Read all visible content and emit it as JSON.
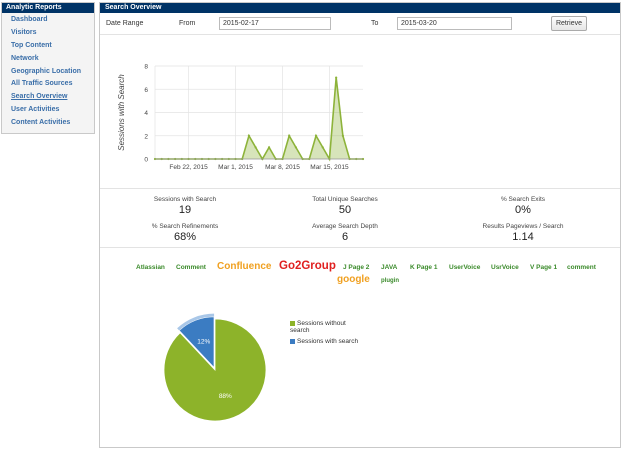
{
  "sidebar": {
    "title": "Analytic Reports",
    "items": [
      {
        "label": "Dashboard",
        "active": false
      },
      {
        "label": "Visitors",
        "active": false
      },
      {
        "label": "Top Content",
        "active": false
      },
      {
        "label": "Network",
        "active": false
      },
      {
        "label": "Geographic Location",
        "active": false
      },
      {
        "label": "All Traffic Sources",
        "active": false
      },
      {
        "label": "Search Overview",
        "active": true
      },
      {
        "label": "User Activities",
        "active": false
      },
      {
        "label": "Content Activities",
        "active": false
      }
    ]
  },
  "main": {
    "title": "Search Overview",
    "filter": {
      "date_range_label": "Date Range",
      "from_label": "From",
      "from_value": "2015-02-17",
      "to_label": "To",
      "to_value": "2015-03-20",
      "retrieve_label": "Retrieve"
    },
    "stats": [
      {
        "title": "Sessions with Search",
        "value": "19"
      },
      {
        "title": "Total Unique Searches",
        "value": "50"
      },
      {
        "title": "% Search Exits",
        "value": "0%"
      },
      {
        "title": "% Search Refinements",
        "value": "68%"
      },
      {
        "title": "Average Search Depth",
        "value": "6"
      },
      {
        "title": "Results Pageviews / Search",
        "value": "1.14"
      }
    ],
    "tags": [
      {
        "text": "Atlassian",
        "color": "#3a8a2a",
        "size": 6.5
      },
      {
        "text": "Comment",
        "color": "#3a8a2a",
        "size": 6.5
      },
      {
        "text": "Confluence",
        "color": "#f0a020",
        "size": 10
      },
      {
        "text": "Go2Group",
        "color": "#e02020",
        "size": 11.5
      },
      {
        "text": "J Page 2",
        "color": "#3a8a2a",
        "size": 6.5
      },
      {
        "text": "JAVA",
        "color": "#3a8a2a",
        "size": 6.5
      },
      {
        "text": "K Page 1",
        "color": "#3a8a2a",
        "size": 6.5
      },
      {
        "text": "UserVoice",
        "color": "#3a8a2a",
        "size": 6.5
      },
      {
        "text": "UsrVoice",
        "color": "#3a8a2a",
        "size": 6.5
      },
      {
        "text": "V Page 1",
        "color": "#3a8a2a",
        "size": 6.5
      },
      {
        "text": "comment",
        "color": "#3a8a2a",
        "size": 6.5
      },
      {
        "text": "google",
        "color": "#f0a020",
        "size": 10
      },
      {
        "text": "plugin",
        "color": "#3a8a2a",
        "size": 6
      }
    ]
  },
  "chart_data": [
    {
      "type": "area",
      "ylabel": "Sessions with Search",
      "xlabel": "",
      "ylim": [
        0,
        8
      ],
      "yticks": [
        "0",
        "2",
        "4",
        "6",
        "8"
      ],
      "xticks": [
        "Feb 22, 2015",
        "Mar 1, 2015",
        "Mar 8, 2015",
        "Mar 15, 2015"
      ],
      "x": [
        "2015-02-17",
        "2015-02-18",
        "2015-02-19",
        "2015-02-20",
        "2015-02-21",
        "2015-02-22",
        "2015-02-23",
        "2015-02-24",
        "2015-02-25",
        "2015-02-26",
        "2015-02-27",
        "2015-02-28",
        "2015-03-01",
        "2015-03-02",
        "2015-03-03",
        "2015-03-04",
        "2015-03-05",
        "2015-03-06",
        "2015-03-07",
        "2015-03-08",
        "2015-03-09",
        "2015-03-10",
        "2015-03-11",
        "2015-03-12",
        "2015-03-13",
        "2015-03-14",
        "2015-03-15",
        "2015-03-16",
        "2015-03-17",
        "2015-03-18",
        "2015-03-19",
        "2015-03-20"
      ],
      "values": [
        0,
        0,
        0,
        0,
        0,
        0,
        0,
        0,
        0,
        0,
        0,
        0,
        0,
        0,
        2,
        1,
        0,
        1,
        0,
        0,
        2,
        1,
        0,
        0,
        2,
        1,
        0,
        7,
        2,
        0,
        0,
        0
      ],
      "color": "#8db33a",
      "grid": true
    },
    {
      "type": "pie",
      "series": [
        {
          "name": "Sessions without search",
          "value": 88,
          "label": "88%",
          "color": "#8db32a"
        },
        {
          "name": "Sessions with search",
          "value": 12,
          "label": "12%",
          "color": "#3b7cc2"
        }
      ],
      "legend": "right"
    }
  ]
}
